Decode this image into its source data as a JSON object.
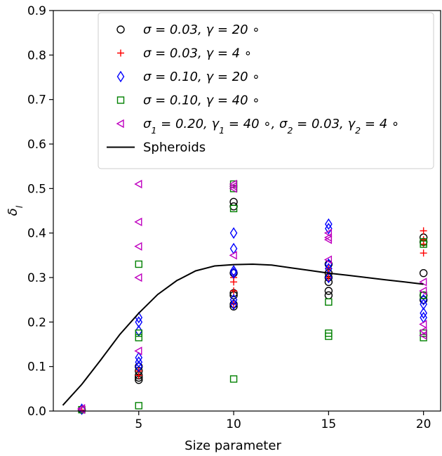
{
  "chart_data": {
    "type": "scatter",
    "xlabel": "Size parameter",
    "ylabel": "δ_l",
    "xlim": [
      0.5,
      20.9
    ],
    "ylim": [
      0.0,
      0.9
    ],
    "xticks": [
      5,
      10,
      15,
      20
    ],
    "yticks": [
      0.0,
      0.1,
      0.2,
      0.3,
      0.4,
      0.5,
      0.6,
      0.7,
      0.8,
      0.9
    ],
    "grid": false,
    "legend_position": "top-right",
    "series": [
      {
        "name": "σ = 0.03, γ = 20 ∘",
        "marker": "circle",
        "color": "#000000",
        "points": [
          [
            2,
            0.003
          ],
          [
            5,
            0.07
          ],
          [
            5,
            0.075
          ],
          [
            5,
            0.08
          ],
          [
            5,
            0.09
          ],
          [
            5,
            0.1
          ],
          [
            10,
            0.235
          ],
          [
            10,
            0.24
          ],
          [
            10,
            0.26
          ],
          [
            10,
            0.265
          ],
          [
            10,
            0.31
          ],
          [
            10,
            0.46
          ],
          [
            10,
            0.47
          ],
          [
            15,
            0.26
          ],
          [
            15,
            0.27
          ],
          [
            15,
            0.29
          ],
          [
            15,
            0.3
          ],
          [
            15,
            0.31
          ],
          [
            15,
            0.33
          ],
          [
            20,
            0.31
          ],
          [
            20,
            0.39
          ],
          [
            20,
            0.38
          ],
          [
            20,
            0.26
          ],
          [
            20,
            0.25
          ]
        ]
      },
      {
        "name": "σ = 0.03, γ = 4 ∘",
        "marker": "plus",
        "color": "#ff0000",
        "points": [
          [
            2,
            0.002
          ],
          [
            5,
            0.08
          ],
          [
            5,
            0.09
          ],
          [
            10,
            0.24
          ],
          [
            10,
            0.27
          ],
          [
            10,
            0.29
          ],
          [
            10,
            0.3
          ],
          [
            15,
            0.3
          ],
          [
            15,
            0.31
          ],
          [
            15,
            0.32
          ],
          [
            20,
            0.355
          ],
          [
            20,
            0.375
          ],
          [
            20,
            0.385
          ],
          [
            20,
            0.405
          ]
        ]
      },
      {
        "name": "σ = 0.10, γ = 20 ∘",
        "marker": "diamond",
        "color": "#0000ff",
        "points": [
          [
            2,
            0.004
          ],
          [
            5,
            0.1
          ],
          [
            5,
            0.11
          ],
          [
            5,
            0.12
          ],
          [
            5,
            0.18
          ],
          [
            5,
            0.2
          ],
          [
            5,
            0.21
          ],
          [
            10,
            0.24
          ],
          [
            10,
            0.25
          ],
          [
            10,
            0.31
          ],
          [
            10,
            0.315
          ],
          [
            10,
            0.365
          ],
          [
            10,
            0.4
          ],
          [
            15,
            0.3
          ],
          [
            15,
            0.32
          ],
          [
            15,
            0.33
          ],
          [
            15,
            0.41
          ],
          [
            15,
            0.42
          ],
          [
            20,
            0.21
          ],
          [
            20,
            0.22
          ],
          [
            20,
            0.24
          ],
          [
            20,
            0.25
          ]
        ]
      },
      {
        "name": "σ = 0.10, γ = 40 ∘",
        "marker": "square",
        "color": "#008000",
        "points": [
          [
            2,
            0.003
          ],
          [
            5,
            0.012
          ],
          [
            5,
            0.165
          ],
          [
            5,
            0.175
          ],
          [
            5,
            0.33
          ],
          [
            10,
            0.072
          ],
          [
            10,
            0.455
          ],
          [
            10,
            0.5
          ],
          [
            10,
            0.51
          ],
          [
            15,
            0.168
          ],
          [
            15,
            0.175
          ],
          [
            15,
            0.245
          ],
          [
            20,
            0.165
          ],
          [
            20,
            0.175
          ],
          [
            20,
            0.26
          ],
          [
            20,
            0.375
          ],
          [
            20,
            0.38
          ]
        ]
      },
      {
        "name": "σ_1 = 0.20, γ_1 = 40 ∘, σ_2 = 0.03, γ_2 = 4 ∘",
        "marker": "triangle-left",
        "color": "#bf00bf",
        "points": [
          [
            2,
            0.003
          ],
          [
            2,
            0.006
          ],
          [
            5,
            0.135
          ],
          [
            5,
            0.3
          ],
          [
            5,
            0.37
          ],
          [
            5,
            0.425
          ],
          [
            5,
            0.51
          ],
          [
            10,
            0.35
          ],
          [
            10,
            0.5
          ],
          [
            10,
            0.505
          ],
          [
            10,
            0.51
          ],
          [
            15,
            0.34
          ],
          [
            15,
            0.385
          ],
          [
            15,
            0.39
          ],
          [
            15,
            0.4
          ],
          [
            20,
            0.17
          ],
          [
            20,
            0.18
          ],
          [
            20,
            0.195
          ],
          [
            20,
            0.27
          ],
          [
            20,
            0.29
          ]
        ]
      },
      {
        "name": "Spheroids",
        "marker": "line",
        "color": "#000000",
        "points": [
          [
            1,
            0.013
          ],
          [
            2,
            0.06
          ],
          [
            3,
            0.115
          ],
          [
            4,
            0.172
          ],
          [
            5,
            0.22
          ],
          [
            6,
            0.262
          ],
          [
            7,
            0.293
          ],
          [
            8,
            0.315
          ],
          [
            9,
            0.326
          ],
          [
            10,
            0.329
          ],
          [
            11,
            0.33
          ],
          [
            12,
            0.328
          ],
          [
            13,
            0.322
          ],
          [
            14,
            0.316
          ],
          [
            15,
            0.31
          ],
          [
            16,
            0.305
          ],
          [
            17,
            0.3
          ],
          [
            18,
            0.295
          ],
          [
            19,
            0.29
          ],
          [
            20,
            0.285
          ]
        ]
      }
    ]
  }
}
